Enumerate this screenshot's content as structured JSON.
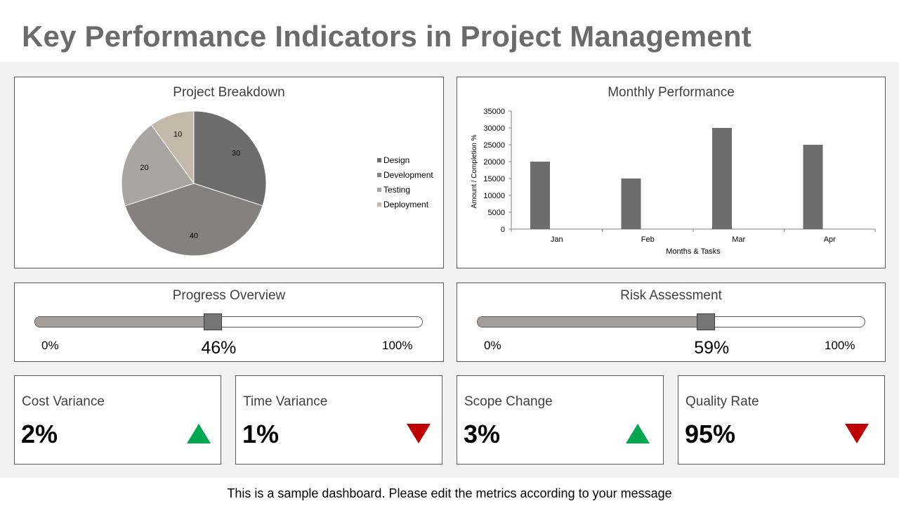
{
  "page": {
    "title": "Key Performance Indicators in Project Management",
    "footer_note": "This is a sample dashboard. Please edit the metrics according to your message"
  },
  "colors": {
    "title_text": "#6b6b6b",
    "background": "#f2f2f2",
    "up_arrow": "#00a650",
    "down_arrow": "#c00000"
  },
  "chart_data": [
    {
      "type": "pie",
      "title": "Project Breakdown",
      "categories": [
        "Design",
        "Development",
        "Testing",
        "Deployment"
      ],
      "values": [
        30,
        40,
        20,
        10
      ],
      "colors": [
        "#6d6d6d",
        "#848180",
        "#a8a5a3",
        "#c3b9ab"
      ],
      "legend": "right"
    },
    {
      "type": "bar",
      "title": "Monthly Performance",
      "categories": [
        "Jan",
        "Feb",
        "Mar",
        "Apr"
      ],
      "values": [
        20000,
        15000,
        30000,
        25000
      ],
      "xlabel": "Months & Tasks",
      "ylabel": "Amount / Completion %",
      "ylim": [
        0,
        35000
      ],
      "yticks": [
        0,
        5000,
        10000,
        15000,
        20000,
        25000,
        30000,
        35000
      ],
      "bar_color": "#6d6d6d",
      "grid": false
    }
  ],
  "progress_overview": {
    "title": "Progress Overview",
    "value": 0.46,
    "value_label": "46%",
    "min_label": "0%",
    "max_label": "100%"
  },
  "risk_assessment": {
    "title": "Risk Assessment",
    "value": 0.59,
    "value_label": "59%",
    "min_label": "0%",
    "max_label": "100%"
  },
  "kpis": [
    {
      "label": "Cost Variance",
      "value": "2%",
      "trend": "up",
      "icon": "triangle-up-icon"
    },
    {
      "label": "Time Variance",
      "value": "1%",
      "trend": "down",
      "icon": "triangle-down-icon"
    },
    {
      "label": "Scope Change",
      "value": "3%",
      "trend": "up",
      "icon": "triangle-up-icon"
    },
    {
      "label": "Quality Rate",
      "value": "95%",
      "trend": "down",
      "icon": "triangle-down-icon"
    }
  ]
}
